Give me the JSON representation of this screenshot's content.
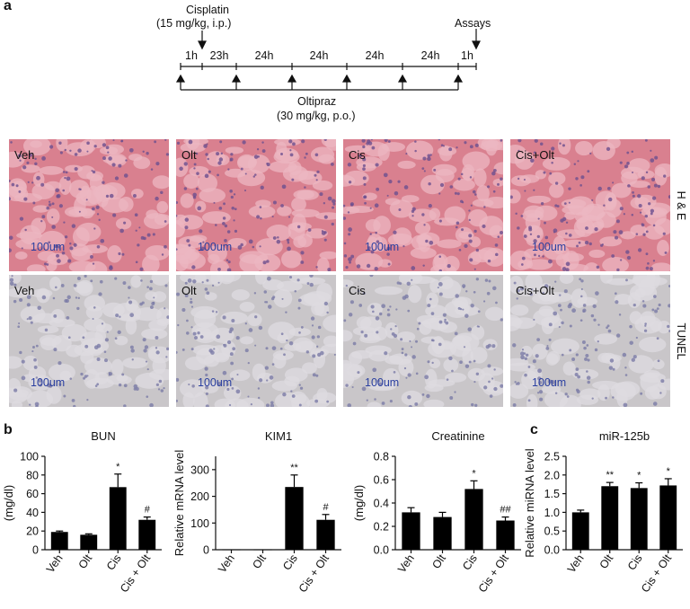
{
  "panel_labels": {
    "a": "a",
    "b": "b",
    "c": "c"
  },
  "timeline": {
    "cisplatin_line1": "Cisplatin",
    "cisplatin_line2": "(15 mg/kg, i.p.)",
    "assays": "Assays",
    "intervals": [
      "1h",
      "23h",
      "24h",
      "24h",
      "24h",
      "24h",
      "1h"
    ],
    "oltipraz_line1": "Oltipraz",
    "oltipraz_line2": "(30 mg/kg, p.o.)"
  },
  "histology": {
    "tile_labels": [
      "Veh",
      "Olt",
      "Cis",
      "Cis+Olt"
    ],
    "scale_text": "100um",
    "row_labels": {
      "he": "H & E",
      "tunel": "TUNEL"
    },
    "colors": {
      "he_base": "#d9808f",
      "he_light": "#ecb7c2",
      "tunel_base": "#c9c6c9",
      "tunel_light": "#dedbe0"
    }
  },
  "chart_data": [
    {
      "type": "bar",
      "title": "BUN",
      "ylabel": "(mg/dl)",
      "categories": [
        "Veh",
        "Olt",
        "Cis",
        "Cis + Olt"
      ],
      "values": [
        19,
        16,
        67,
        32
      ],
      "errors": [
        1,
        1,
        14,
        3
      ],
      "significance": [
        "",
        "",
        "*",
        "#"
      ],
      "ylim": [
        0,
        100
      ],
      "yticks": [
        0,
        20,
        40,
        60,
        80,
        100
      ]
    },
    {
      "type": "bar",
      "title": "KIM1",
      "ylabel": "Relative mRNA level",
      "categories": [
        "Veh",
        "Olt",
        "Cis",
        "Cis + Olt"
      ],
      "values": [
        1,
        1,
        235,
        112
      ],
      "errors": [
        0,
        0,
        45,
        20
      ],
      "significance": [
        "",
        "",
        "**",
        "#"
      ],
      "ylim": [
        0,
        350
      ],
      "yticks": [
        0,
        100,
        200,
        300
      ]
    },
    {
      "type": "bar",
      "title": "Creatinine",
      "ylabel": "(mg/dl)",
      "categories": [
        "Veh",
        "Olt",
        "Cis",
        "Cis + Olt"
      ],
      "values": [
        0.32,
        0.28,
        0.52,
        0.25
      ],
      "errors": [
        0.04,
        0.04,
        0.07,
        0.03
      ],
      "significance": [
        "",
        "",
        "*",
        "##"
      ],
      "ylim": [
        0,
        0.8
      ],
      "yticks": [
        0,
        0.2,
        0.4,
        0.6,
        0.8
      ]
    },
    {
      "type": "bar",
      "title": "miR-125b",
      "ylabel": "Relative miRNA level",
      "categories": [
        "Veh",
        "Olt",
        "Cis",
        "Cis + Olt"
      ],
      "values": [
        1.0,
        1.7,
        1.65,
        1.72
      ],
      "errors": [
        0.06,
        0.1,
        0.14,
        0.18
      ],
      "significance": [
        "",
        "**",
        "*",
        "*"
      ],
      "ylim": [
        0,
        2.5
      ],
      "yticks": [
        0,
        0.5,
        1.0,
        1.5,
        2.0,
        2.5
      ]
    }
  ]
}
